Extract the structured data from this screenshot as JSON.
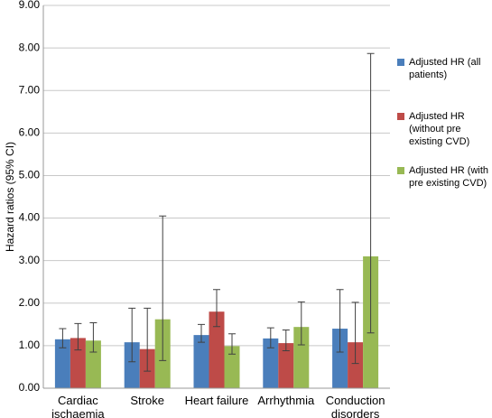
{
  "chart_data": {
    "type": "bar",
    "y_label": "Hazard ratios (95% CI)",
    "categories": [
      "Cardiac ischaemia",
      "Stroke",
      "Heart failure",
      "Arrhythmia",
      "Conduction disorders"
    ],
    "series": [
      {
        "name": "Adjusted HR (all patients)",
        "color": "#4a7ebb",
        "values": [
          1.15,
          1.08,
          1.25,
          1.17,
          1.4
        ],
        "ci_low": [
          0.95,
          0.62,
          1.08,
          0.95,
          0.85
        ],
        "ci_high": [
          1.4,
          1.88,
          1.5,
          1.42,
          2.32
        ]
      },
      {
        "name": "Adjusted HR (without pre existing CVD)",
        "color": "#be4b48",
        "values": [
          1.18,
          0.92,
          1.8,
          1.06,
          1.08
        ],
        "ci_low": [
          0.9,
          0.4,
          1.45,
          0.88,
          0.58
        ],
        "ci_high": [
          1.52,
          1.88,
          2.32,
          1.37,
          2.02
        ]
      },
      {
        "name": "Adjusted HR (with pre existing CVD)",
        "color": "#98b954",
        "values": [
          1.12,
          1.62,
          0.99,
          1.44,
          3.1
        ],
        "ci_low": [
          0.85,
          0.65,
          0.8,
          1.02,
          1.3
        ],
        "ci_high": [
          1.54,
          4.05,
          1.28,
          2.03,
          7.87
        ]
      }
    ],
    "ylim": [
      0,
      9
    ],
    "yticks": [
      {
        "value": 0,
        "label": "0.00"
      },
      {
        "value": 1,
        "label": "1.00"
      },
      {
        "value": 2,
        "label": "2.00"
      },
      {
        "value": 3,
        "label": "3.00"
      },
      {
        "value": 4,
        "label": "4.00"
      },
      {
        "value": 5,
        "label": "5.00"
      },
      {
        "value": 6,
        "label": "6.00"
      },
      {
        "value": 7,
        "label": "7.00"
      },
      {
        "value": 8,
        "label": "8.00"
      },
      {
        "value": 9,
        "label": "9.00"
      }
    ],
    "grid": true,
    "legend": "right"
  }
}
